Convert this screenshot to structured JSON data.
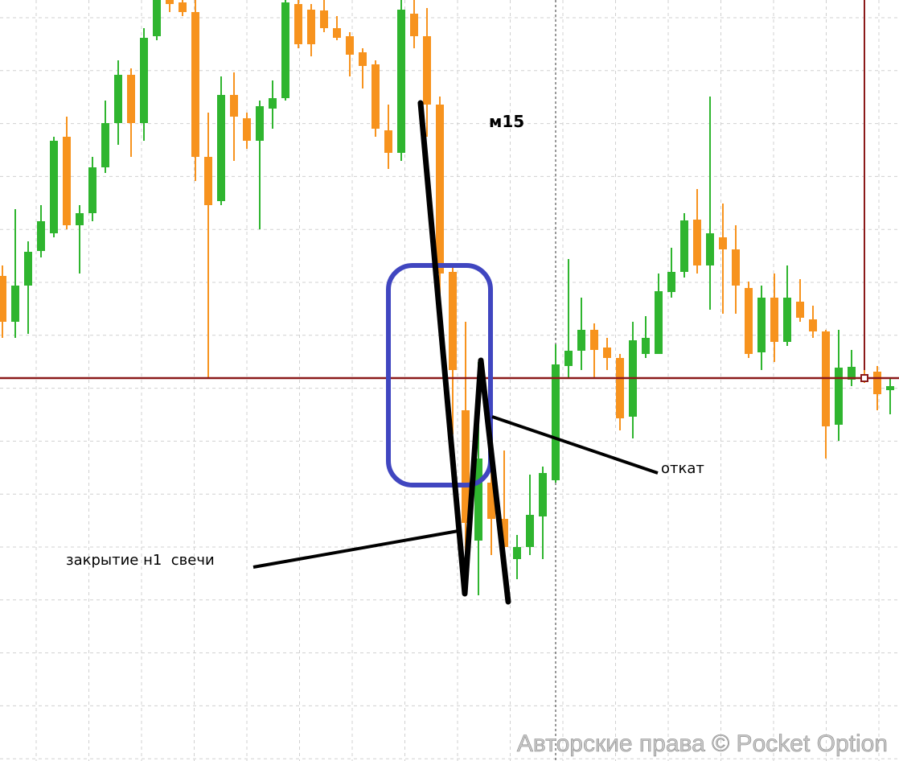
{
  "chart_data": {
    "type": "candlestick",
    "title": "м15",
    "annotations": [
      "откат",
      "закрытие н1  свечи"
    ],
    "watermark": "Авторские права © Pocket Option",
    "up_color": "#2fb52f",
    "down_color": "#f7931e",
    "ylim": [
      0,
      946
    ],
    "grid": true,
    "price_line": 476,
    "price_line_color": "#8b1a1a",
    "open": [
      603,
      546,
      591,
      634,
      656,
      776,
      666,
      681,
      738,
      793,
      853,
      793,
      901,
      946,
      943,
      931,
      751,
      696,
      828,
      799,
      771,
      811,
      824,
      941,
      934,
      933,
      911,
      901,
      881,
      866,
      784,
      756,
      929,
      901,
      816,
      608,
      436,
      274,
      346,
      301,
      251,
      266,
      304,
      349,
      491,
      510,
      536,
      514,
      501,
      428,
      506,
      506,
      583,
      608,
      673,
      616,
      651,
      636,
      588,
      508,
      576,
      521,
      571,
      549,
      534,
      418,
      474,
      481,
      484,
      461
    ],
    "high": [
      616,
      686,
      646,
      691,
      776,
      801,
      691,
      751,
      821,
      871,
      861,
      911,
      946,
      946,
      946,
      946,
      806,
      851,
      856,
      806,
      821,
      846,
      946,
      946,
      941,
      946,
      926,
      906,
      886,
      871,
      816,
      946,
      946,
      936,
      826,
      616,
      546,
      496,
      371,
      386,
      281,
      356,
      366,
      518,
      624,
      576,
      544,
      526,
      506,
      546,
      553,
      606,
      638,
      681,
      711,
      826,
      693,
      666,
      596,
      591,
      606,
      616,
      599,
      566,
      536,
      536,
      511,
      486,
      491,
      476
    ],
    "low": [
      526,
      526,
      531,
      626,
      651,
      661,
      606,
      671,
      731,
      766,
      751,
      771,
      896,
      931,
      926,
      721,
      476,
      691,
      746,
      761,
      661,
      786,
      821,
      886,
      876,
      906,
      896,
      851,
      836,
      776,
      736,
      746,
      886,
      776,
      566,
      406,
      206,
      206,
      256,
      226,
      226,
      256,
      251,
      346,
      476,
      486,
      476,
      486,
      411,
      401,
      501,
      506,
      576,
      601,
      606,
      561,
      556,
      556,
      501,
      486,
      496,
      516,
      546,
      526,
      376,
      398,
      466,
      470,
      436,
      431
    ],
    "close": [
      546,
      591,
      633,
      671,
      771,
      666,
      681,
      738,
      793,
      853,
      793,
      899,
      946,
      941,
      931,
      751,
      691,
      828,
      801,
      771,
      814,
      824,
      943,
      891,
      891,
      911,
      899,
      878,
      864,
      786,
      756,
      934,
      901,
      816,
      606,
      486,
      296,
      376,
      301,
      266,
      266,
      306,
      358,
      493,
      510,
      536,
      511,
      501,
      426,
      523,
      526,
      584,
      608,
      672,
      616,
      656,
      636,
      591,
      506,
      576,
      521,
      576,
      551,
      534,
      416,
      489,
      490,
      474,
      456,
      466
    ]
  }
}
